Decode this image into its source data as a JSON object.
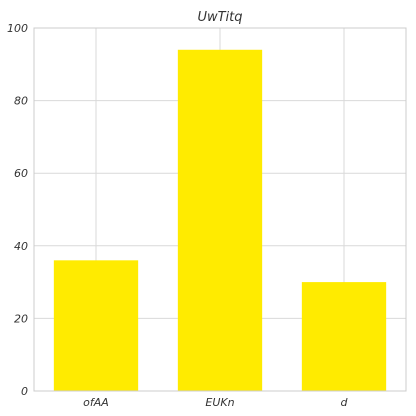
{
  "chart_data": {
    "type": "bar",
    "title": "UwTitq",
    "xlabel": "",
    "ylabel": "",
    "categories": [
      "ofAA",
      "EUKn",
      "d"
    ],
    "values": [
      36,
      94,
      30
    ],
    "ylim": [
      0,
      100
    ],
    "yticks": [
      0,
      20,
      40,
      60,
      80,
      100
    ],
    "grid": true,
    "bar_color": "#ffeb00",
    "grid_color": "#d9d9d9"
  }
}
